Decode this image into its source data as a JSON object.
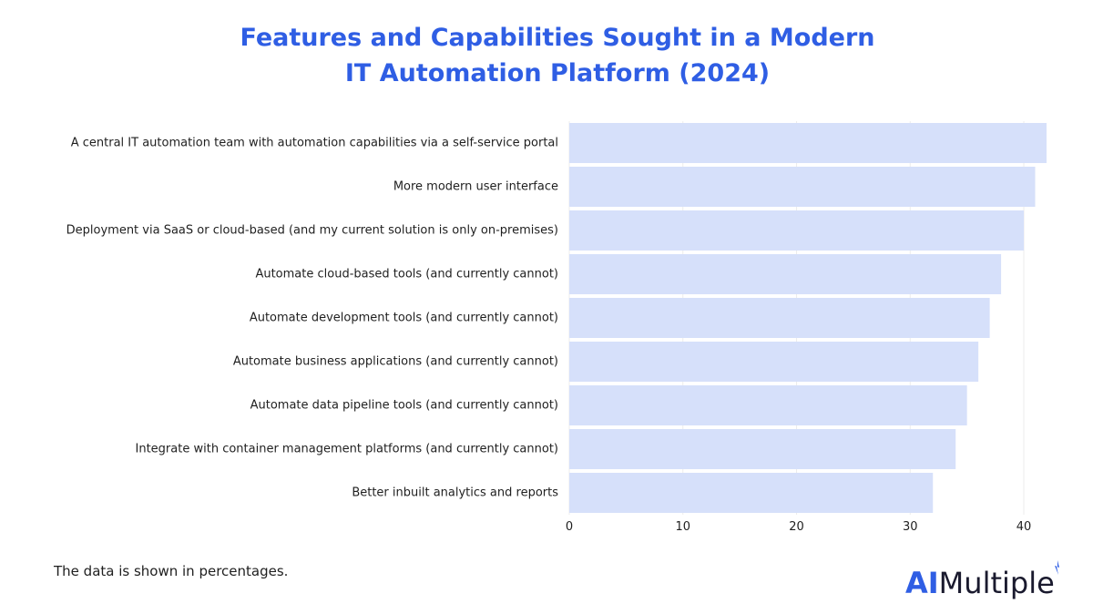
{
  "chart_data": {
    "type": "bar",
    "orientation": "horizontal",
    "title": [
      "Features and Capabilities Sought in a Modern",
      "IT Automation Platform (2024)"
    ],
    "xlabel": "",
    "ylabel": "",
    "categories": [
      "A central IT automation team with automation capabilities via a self-service portal",
      "More modern user interface",
      "Deployment via SaaS or cloud-based (and my current solution is only on-premises)",
      "Automate cloud-based tools (and currently cannot)",
      "Automate development tools (and currently cannot)",
      "Automate business applications (and currently cannot)",
      "Automate data pipeline tools (and currently cannot)",
      "Integrate with container management platforms (and currently cannot)",
      "Better inbuilt analytics and reports"
    ],
    "values": [
      42,
      41,
      40,
      38,
      37,
      36,
      35,
      34,
      32
    ],
    "xlim": [
      0,
      42
    ],
    "xticks": [
      0,
      10,
      20,
      30,
      40
    ],
    "grid": true,
    "bar_color": "#d6e0fa",
    "grid_color": "#ececec"
  },
  "note": "The data is shown in percentages.",
  "logo": {
    "part1": "AI",
    "part2": "Multiple",
    "color_ai": "#2f5ee4",
    "color_rest": "#1a1a2e"
  }
}
